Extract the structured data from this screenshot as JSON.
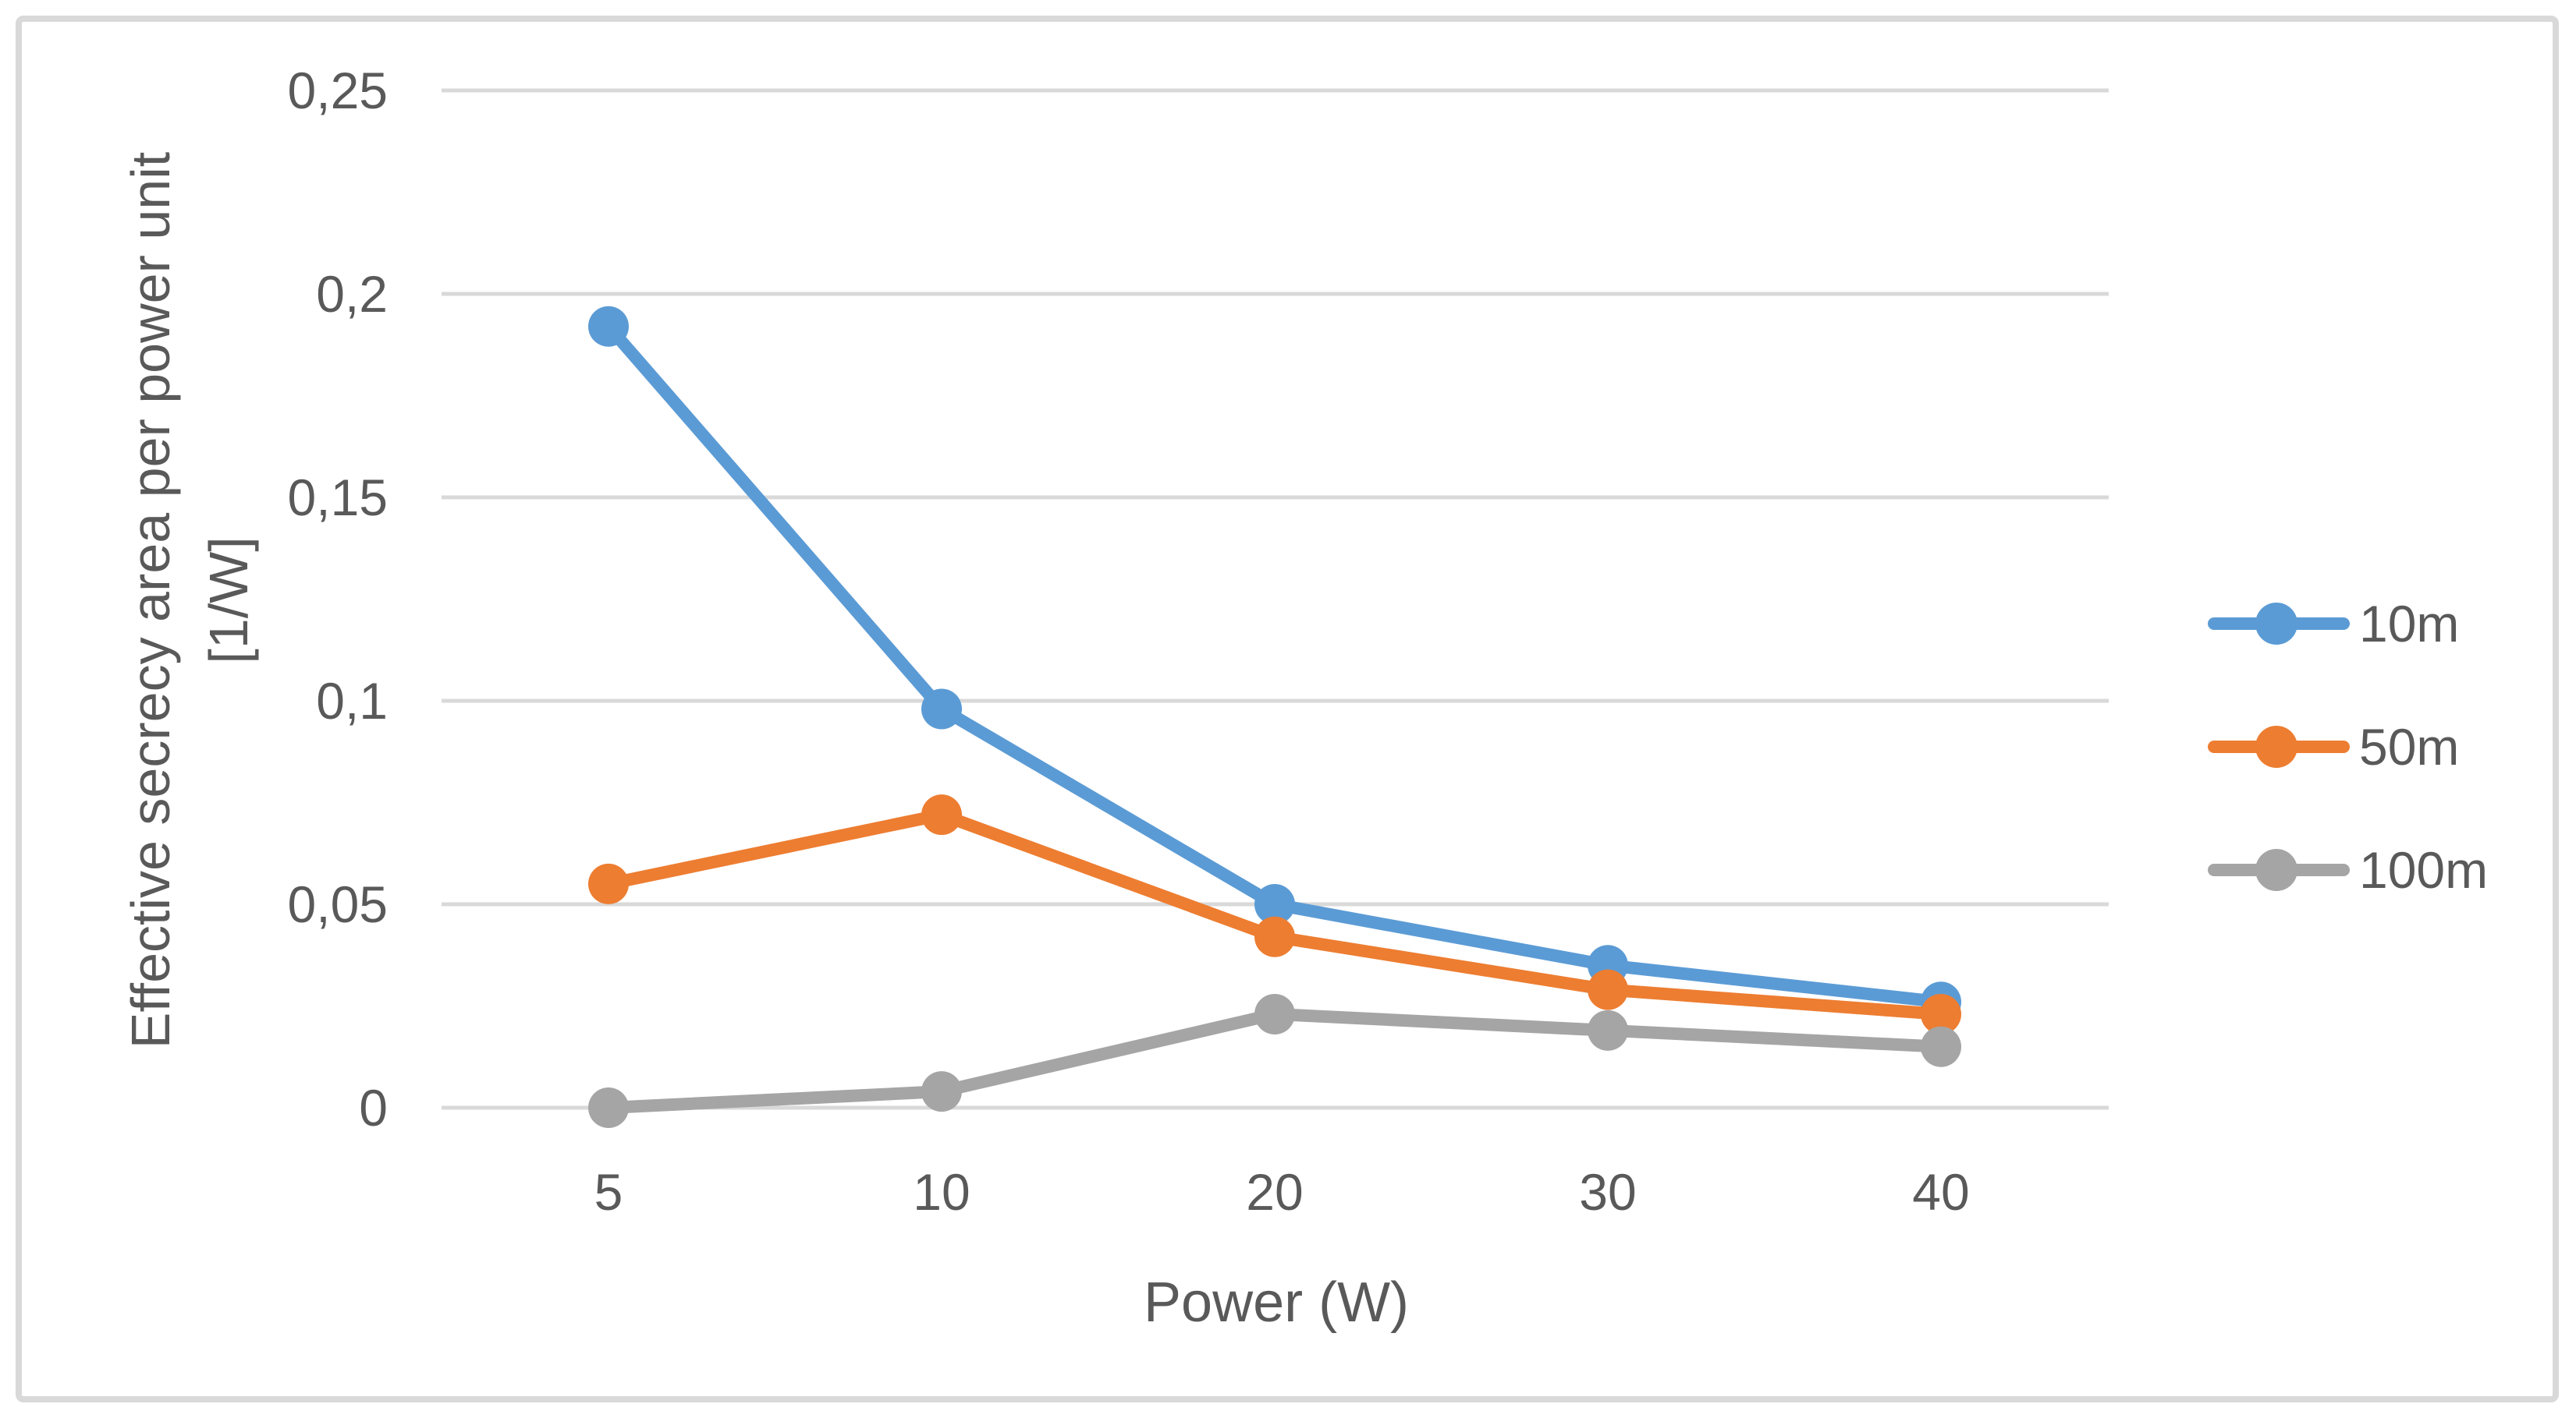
{
  "chart_data": {
    "type": "line",
    "title": "",
    "categories": [
      "5",
      "10",
      "20",
      "30",
      "40"
    ],
    "series": [
      {
        "name": "10m",
        "color": "#5B9BD5",
        "values": [
          0.192,
          0.098,
          0.05,
          0.035,
          0.026
        ]
      },
      {
        "name": "50m",
        "color": "#ED7D31",
        "values": [
          0.055,
          0.072,
          0.042,
          0.029,
          0.023
        ]
      },
      {
        "name": "100m",
        "color": "#A5A5A5",
        "values": [
          0.0,
          0.004,
          0.023,
          0.019,
          0.015
        ]
      }
    ],
    "xlabel": "Power (W)",
    "ylabel_line1": "Effective secrecy area per power unit",
    "ylabel_line2": "[1/W]",
    "ylim": [
      0,
      0.25
    ],
    "y_ticks": [
      0,
      0.05,
      0.1,
      0.15,
      0.2,
      0.25
    ],
    "y_tick_labels": [
      "0",
      "0,05",
      "0,1",
      "0,15",
      "0,2",
      "0,25"
    ],
    "grid": "horizontal",
    "legend_position": "right",
    "marker": "circle"
  },
  "styles": {
    "text_color": "#595959",
    "grid_color": "#D9D9D9",
    "border_color": "#D9D9D9",
    "background": "#FFFFFF"
  }
}
